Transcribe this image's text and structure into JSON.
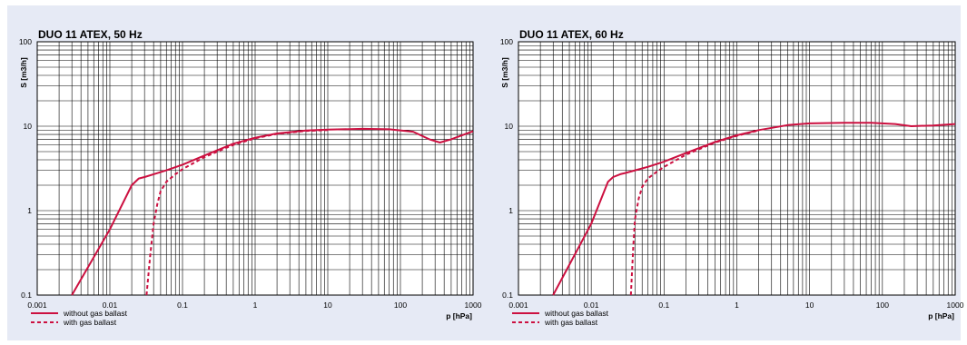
{
  "colors": {
    "curve": "#cc1040",
    "background": "#e6eaf5",
    "plot": "#ffffff",
    "grid": "#000000"
  },
  "chart_data": [
    {
      "type": "line",
      "title": "DUO 11 ATEX, 50 Hz",
      "xlabel": "p [hPa]",
      "ylabel": "S [m3/h]",
      "xscale": "log",
      "yscale": "log",
      "xlim": [
        0.001,
        1000
      ],
      "ylim": [
        0.1,
        100
      ],
      "xticks": [
        "0.001",
        "0.01",
        "0.1",
        "1",
        "10",
        "100",
        "1000"
      ],
      "yticks": [
        "0.1",
        "1",
        "10",
        "100"
      ],
      "grid": true,
      "legend": "bottom-left",
      "series": [
        {
          "name": "without gas ballast",
          "style": "solid",
          "x": [
            0.003,
            0.01,
            0.02,
            0.025,
            0.03,
            0.04,
            0.06,
            0.1,
            0.2,
            0.5,
            1,
            2,
            5,
            10,
            30,
            70,
            150,
            250,
            350,
            500,
            1000
          ],
          "y": [
            0.1,
            0.6,
            2.0,
            2.4,
            2.5,
            2.7,
            3.0,
            3.5,
            4.5,
            6.2,
            7.3,
            8.2,
            8.9,
            9.1,
            9.3,
            9.2,
            8.6,
            7.0,
            6.4,
            7.0,
            8.7
          ]
        },
        {
          "name": "with gas ballast",
          "style": "dashed",
          "x": [
            0.032,
            0.036,
            0.04,
            0.045,
            0.05,
            0.06,
            0.08,
            0.1,
            0.2,
            0.5,
            1,
            2,
            5,
            10
          ],
          "y": [
            0.1,
            0.3,
            0.7,
            1.2,
            1.7,
            2.2,
            2.7,
            3.1,
            4.3,
            6.0,
            7.2,
            8.1,
            8.8,
            9.0
          ]
        }
      ]
    },
    {
      "type": "line",
      "title": "DUO 11 ATEX, 60 Hz",
      "xlabel": "p [hPa]",
      "ylabel": "S [m3/h]",
      "xscale": "log",
      "yscale": "log",
      "xlim": [
        0.001,
        1000
      ],
      "ylim": [
        0.1,
        100
      ],
      "xticks": [
        "0.001",
        "0.01",
        "0.1",
        "1",
        "10",
        "100",
        "1000"
      ],
      "yticks": [
        "0.1",
        "1",
        "10",
        "100"
      ],
      "grid": true,
      "legend": "bottom-left",
      "series": [
        {
          "name": "without gas ballast",
          "style": "solid",
          "x": [
            0.003,
            0.01,
            0.017,
            0.02,
            0.025,
            0.03,
            0.04,
            0.06,
            0.1,
            0.2,
            0.5,
            1,
            2,
            5,
            10,
            30,
            70,
            150,
            250,
            500,
            1000
          ],
          "y": [
            0.1,
            0.7,
            2.2,
            2.5,
            2.7,
            2.8,
            3.0,
            3.3,
            3.8,
            4.8,
            6.5,
            7.8,
            9.0,
            10.3,
            10.8,
            11.0,
            11.0,
            10.6,
            10.0,
            10.2,
            10.6
          ]
        },
        {
          "name": "with gas ballast",
          "style": "dashed",
          "x": [
            0.035,
            0.038,
            0.04,
            0.045,
            0.05,
            0.06,
            0.08,
            0.1,
            0.2,
            0.5,
            1,
            2
          ],
          "y": [
            0.1,
            0.4,
            0.8,
            1.4,
            1.9,
            2.4,
            2.9,
            3.3,
            4.6,
            6.4,
            7.7,
            8.9
          ]
        }
      ]
    }
  ]
}
